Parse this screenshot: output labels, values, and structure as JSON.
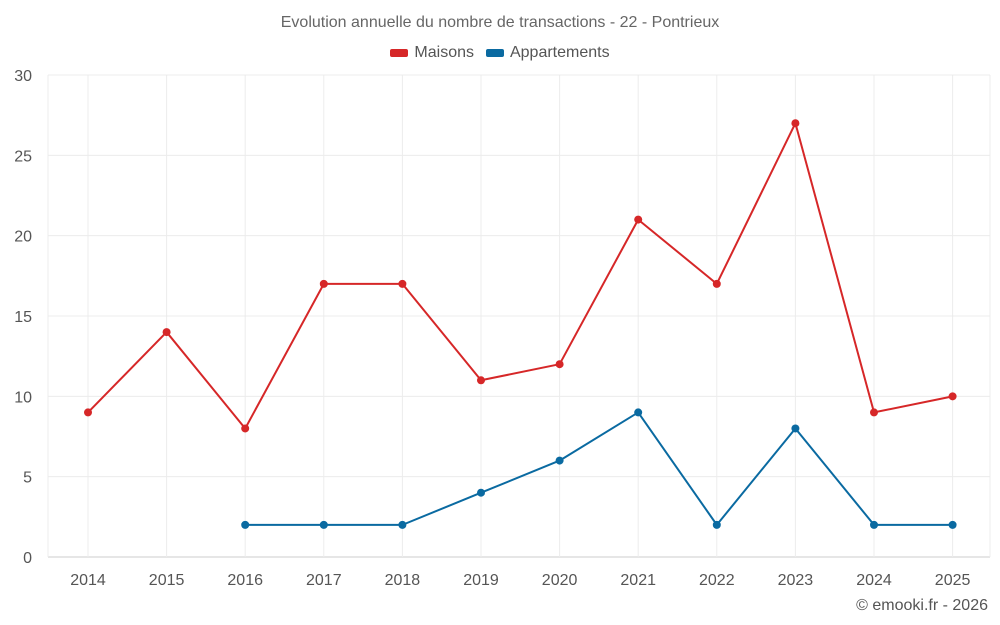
{
  "chart_data": {
    "type": "line",
    "title": "Evolution annuelle du nombre de transactions - 22 - Pontrieux",
    "xlabel": "",
    "ylabel": "",
    "categories": [
      "2014",
      "2015",
      "2016",
      "2017",
      "2018",
      "2019",
      "2020",
      "2021",
      "2022",
      "2023",
      "2024",
      "2025"
    ],
    "ylim": [
      0,
      30
    ],
    "yticks": [
      0,
      5,
      10,
      15,
      20,
      25,
      30
    ],
    "grid": true,
    "legend_position": "top-center",
    "series": [
      {
        "name": "Maisons",
        "color": "#d62728",
        "values": [
          9,
          14,
          8,
          17,
          17,
          11,
          12,
          21,
          17,
          27,
          9,
          10
        ]
      },
      {
        "name": "Appartements",
        "color": "#0a6aa1",
        "values": [
          null,
          null,
          2,
          2,
          2,
          4,
          6,
          9,
          2,
          8,
          2,
          2
        ]
      }
    ]
  },
  "credit": "© emooki.fr - 2026"
}
